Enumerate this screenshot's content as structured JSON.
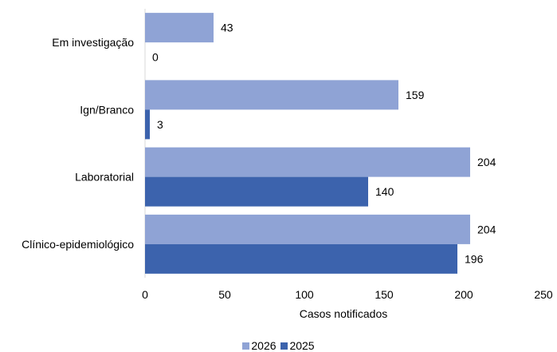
{
  "chart_data": {
    "type": "bar",
    "orientation": "horizontal",
    "categories": [
      "Em investigação",
      "Ign/Branco",
      "Laboratorial",
      "Clínico-epidemiológico"
    ],
    "series": [
      {
        "name": "2026",
        "values": [
          43,
          159,
          204,
          204
        ],
        "color": "#8FA3D5"
      },
      {
        "name": "2025",
        "values": [
          0,
          3,
          140,
          196
        ],
        "color": "#3C63AD"
      }
    ],
    "xlabel": "Casos notificados",
    "xlim": [
      0,
      250
    ],
    "xticks": [
      0,
      50,
      100,
      150,
      200,
      250
    ],
    "grid": false,
    "legend_position": "bottom",
    "data_labels": true
  }
}
